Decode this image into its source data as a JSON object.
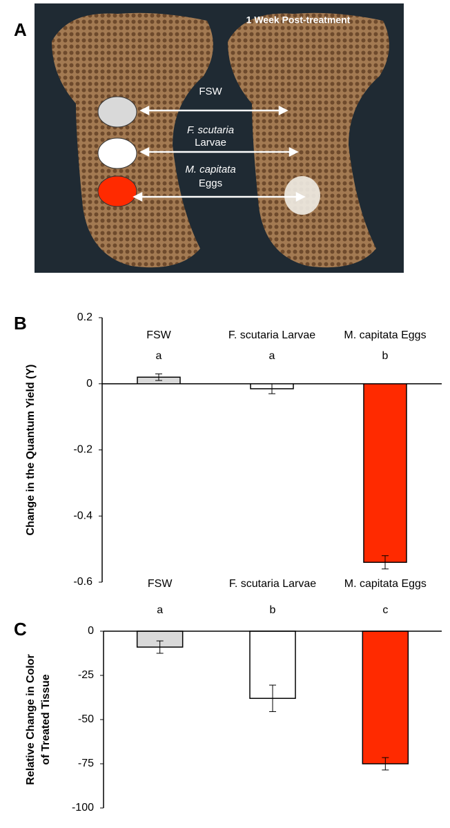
{
  "panel_a": {
    "label": "A",
    "title": "1 Week Post-treatment",
    "treatments": [
      [
        "FSW"
      ],
      [
        "F. scutaria",
        "Larvae"
      ],
      [
        "M. capitata",
        "Eggs"
      ]
    ]
  },
  "chart_data": [
    {
      "type": "bar",
      "panel_label": "B",
      "ylabel": [
        "Change in the Quantum Yield (Y)"
      ],
      "categories": [
        "FSW",
        "F. scutaria Larvae",
        "M. capitata Eggs"
      ],
      "significance": [
        "a",
        "a",
        "b"
      ],
      "values": [
        0.02,
        -0.015,
        -0.54
      ],
      "errors": [
        0.01,
        0.015,
        0.02
      ],
      "colors": [
        "#d9d9d9",
        "#ffffff",
        "#ff2a00"
      ],
      "ylim": [
        -0.6,
        0.2
      ],
      "yticks": [
        -0.6,
        -0.4,
        -0.2,
        0,
        0.2
      ]
    },
    {
      "type": "bar",
      "panel_label": "C",
      "ylabel": [
        "Relative Change in Color",
        "of Treated Tissue"
      ],
      "categories": [
        "FSW",
        "F. scutaria Larvae",
        "M. capitata Eggs"
      ],
      "significance": [
        "a",
        "b",
        "c"
      ],
      "values": [
        -9,
        -38,
        -75
      ],
      "errors": [
        3.5,
        7.5,
        3.5
      ],
      "colors": [
        "#d9d9d9",
        "#ffffff",
        "#ff2a00"
      ],
      "ylim": [
        -100,
        0
      ],
      "yticks": [
        -100,
        -75,
        -50,
        -25,
        0
      ]
    }
  ]
}
